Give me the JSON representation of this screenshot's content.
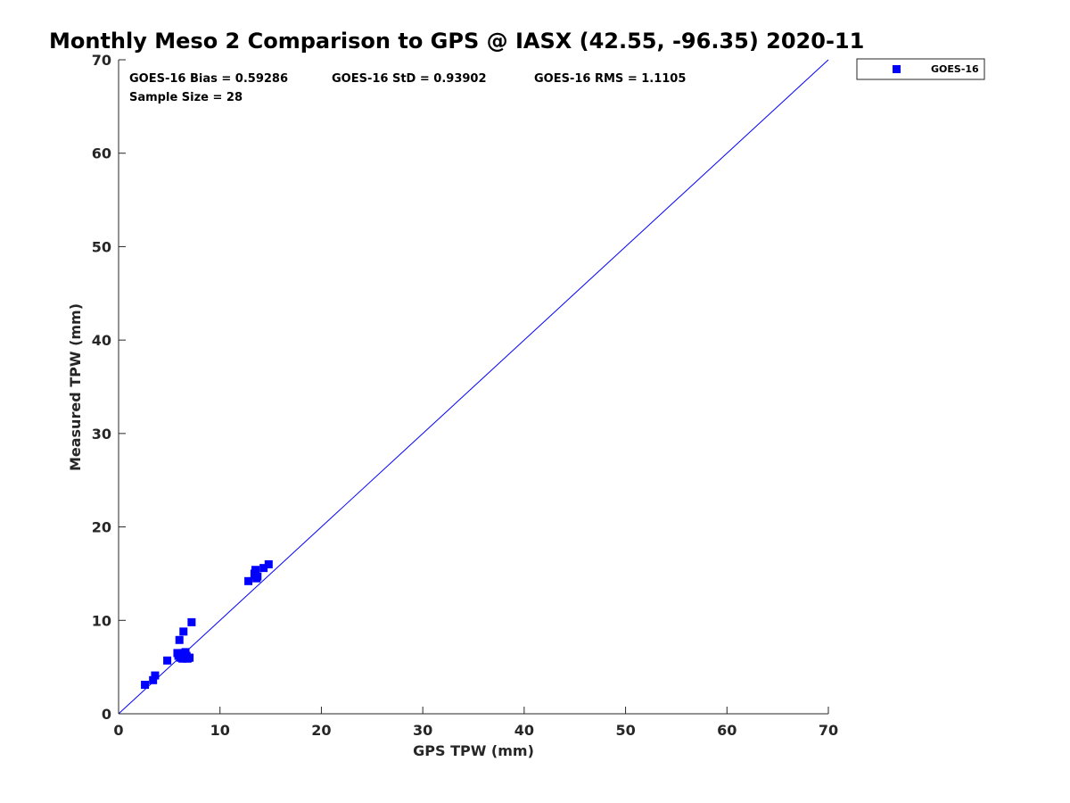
{
  "chart_data": {
    "type": "scatter",
    "title": "Monthly Meso 2 Comparison to GPS @ IASX (42.55, -96.35) 2020-11",
    "xlabel": "GPS TPW (mm)",
    "ylabel": "Measured TPW (mm)",
    "xlim": [
      0,
      70
    ],
    "ylim": [
      0,
      70
    ],
    "xticks": [
      0,
      10,
      20,
      30,
      40,
      50,
      60,
      70
    ],
    "yticks": [
      0,
      10,
      20,
      30,
      40,
      50,
      60,
      70
    ],
    "grid": false,
    "legend_position": "outside-top-right",
    "reference_line": {
      "type": "identity",
      "from": [
        0,
        0
      ],
      "to": [
        70,
        70
      ],
      "color": "#0000ff"
    },
    "stats": [
      {
        "label": "GOES-16 Bias = 0.59286"
      },
      {
        "label": "GOES-16 StD = 0.93902"
      },
      {
        "label": "GOES-16 RMS = 1.1105"
      },
      {
        "label": "Sample Size = 28"
      }
    ],
    "series": [
      {
        "name": "GOES-16",
        "color": "#0000ff",
        "marker": "square",
        "points": [
          [
            2.6,
            3.1
          ],
          [
            3.4,
            3.6
          ],
          [
            3.6,
            4.1
          ],
          [
            4.8,
            5.7
          ],
          [
            5.9,
            6.2
          ],
          [
            6.0,
            7.9
          ],
          [
            6.1,
            6.0
          ],
          [
            6.3,
            6.5
          ],
          [
            6.4,
            8.8
          ],
          [
            6.5,
            6.1
          ],
          [
            6.6,
            6.6
          ],
          [
            6.8,
            5.9
          ],
          [
            6.9,
            6.0
          ],
          [
            7.2,
            9.8
          ],
          [
            6.2,
            6.3
          ],
          [
            5.8,
            6.5
          ],
          [
            12.8,
            14.2
          ],
          [
            13.4,
            15.0
          ],
          [
            13.5,
            15.4
          ],
          [
            13.6,
            14.5
          ],
          [
            13.7,
            14.7
          ],
          [
            14.3,
            15.6
          ],
          [
            14.8,
            16.0
          ],
          [
            13.5,
            14.8
          ],
          [
            6.7,
            6.2
          ],
          [
            6.5,
            6.0
          ],
          [
            6.3,
            5.9
          ],
          [
            7.0,
            6.0
          ]
        ]
      }
    ]
  }
}
